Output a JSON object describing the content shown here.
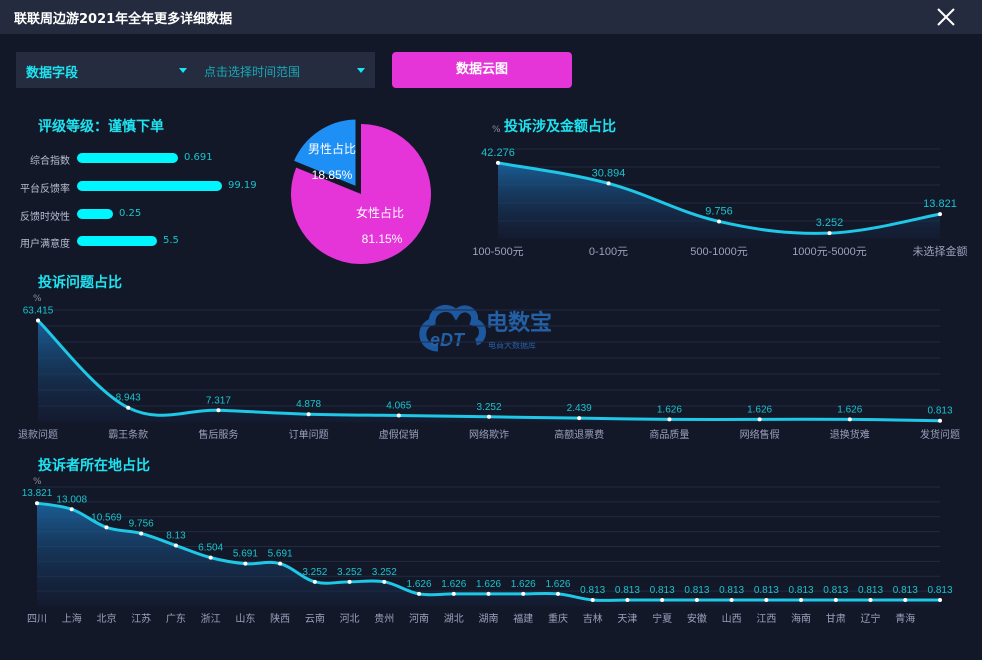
{
  "header": {
    "title": "联联周边游2021年全年更多详细数据",
    "close_icon": "close-icon"
  },
  "controls": {
    "field_select": "数据字段",
    "time_range_placeholder": "点击选择时间范围",
    "cloud_button": "数据云图"
  },
  "rating": {
    "title": "评级等级：谨慎下单",
    "items": [
      {
        "label": "综合指数",
        "value": "0.691"
      },
      {
        "label": "平台反馈率",
        "value": "99.19"
      },
      {
        "label": "反馈时效性",
        "value": "0.25"
      },
      {
        "label": "用户满意度",
        "value": "5.5"
      }
    ]
  },
  "watermark": {
    "brand": "电数宝",
    "sub": "电商大数据库",
    "logo": "eDT"
  },
  "colors": {
    "accent": "#1ee3f0",
    "magenta": "#e535d8",
    "blue": "#1e8ff5",
    "line": "#1ec8e6",
    "bg": "#131829"
  },
  "chart_data": [
    {
      "type": "pie",
      "slices": [
        {
          "label": "男性占比",
          "value": 18.85,
          "text": "18.85%",
          "color": "#1e8ff5"
        },
        {
          "label": "女性占比",
          "value": 81.15,
          "text": "81.15%",
          "color": "#e535d8"
        }
      ]
    },
    {
      "type": "area",
      "title": "投诉涉及金额占比",
      "ylabel": "%",
      "ylim": [
        0,
        50
      ],
      "grid": true,
      "categories": [
        "100-500元",
        "0-100元",
        "500-1000元",
        "1000元-5000元",
        "未选择金额"
      ],
      "values": [
        42.276,
        30.894,
        9.756,
        3.252,
        13.821
      ],
      "labels": [
        "42.276",
        "30.894",
        "9.756",
        "3.252",
        "13.821"
      ]
    },
    {
      "type": "area",
      "title": "投诉问题占比",
      "ylabel": "%",
      "ylim": [
        0,
        70
      ],
      "grid": true,
      "categories": [
        "退款问题",
        "霸王条款",
        "售后服务",
        "订单问题",
        "虚假促销",
        "网络欺诈",
        "高额退票费",
        "商品质量",
        "网络售假",
        "退换货难",
        "发货问题"
      ],
      "values": [
        63.415,
        8.943,
        7.317,
        4.878,
        4.065,
        3.252,
        2.439,
        1.626,
        1.626,
        1.626,
        0.813
      ],
      "labels": [
        "63.415",
        "8.943",
        "7.317",
        "4.878",
        "4.065",
        "3.252",
        "2.439",
        "1.626",
        "1.626",
        "1.626",
        "0.813"
      ]
    },
    {
      "type": "area",
      "title": "投诉者所在地占比",
      "ylabel": "%",
      "ylim": [
        0,
        16
      ],
      "grid": true,
      "categories": [
        "四川",
        "上海",
        "北京",
        "江苏",
        "广东",
        "浙江",
        "山东",
        "陕西",
        "云南",
        "河北",
        "贵州",
        "河南",
        "湖北",
        "湖南",
        "福建",
        "重庆",
        "吉林",
        "天津",
        "宁夏",
        "安徽",
        "山西",
        "江西",
        "海南",
        "甘肃",
        "辽宁",
        "青海",
        ""
      ],
      "values": [
        13.821,
        13.008,
        10.569,
        9.756,
        8.13,
        6.504,
        5.691,
        5.691,
        3.252,
        3.252,
        3.252,
        1.626,
        1.626,
        1.626,
        1.626,
        1.626,
        0.813,
        0.813,
        0.813,
        0.813,
        0.813,
        0.813,
        0.813,
        0.813,
        0.813,
        0.813,
        0.813
      ],
      "labels": [
        "13.821",
        "13.008",
        "10.569",
        "9.756",
        "8.13",
        "6.504",
        "5.691",
        "5.691",
        "3.252",
        "3.252",
        "3.252",
        "1.626",
        "1.626",
        "1.626",
        "1.626",
        "1.626",
        "0.813",
        "0.813",
        "0.813",
        "0.813",
        "0.813",
        "0.813",
        "0.813",
        "0.813",
        "0.813",
        "0.813",
        "0.813"
      ]
    }
  ]
}
